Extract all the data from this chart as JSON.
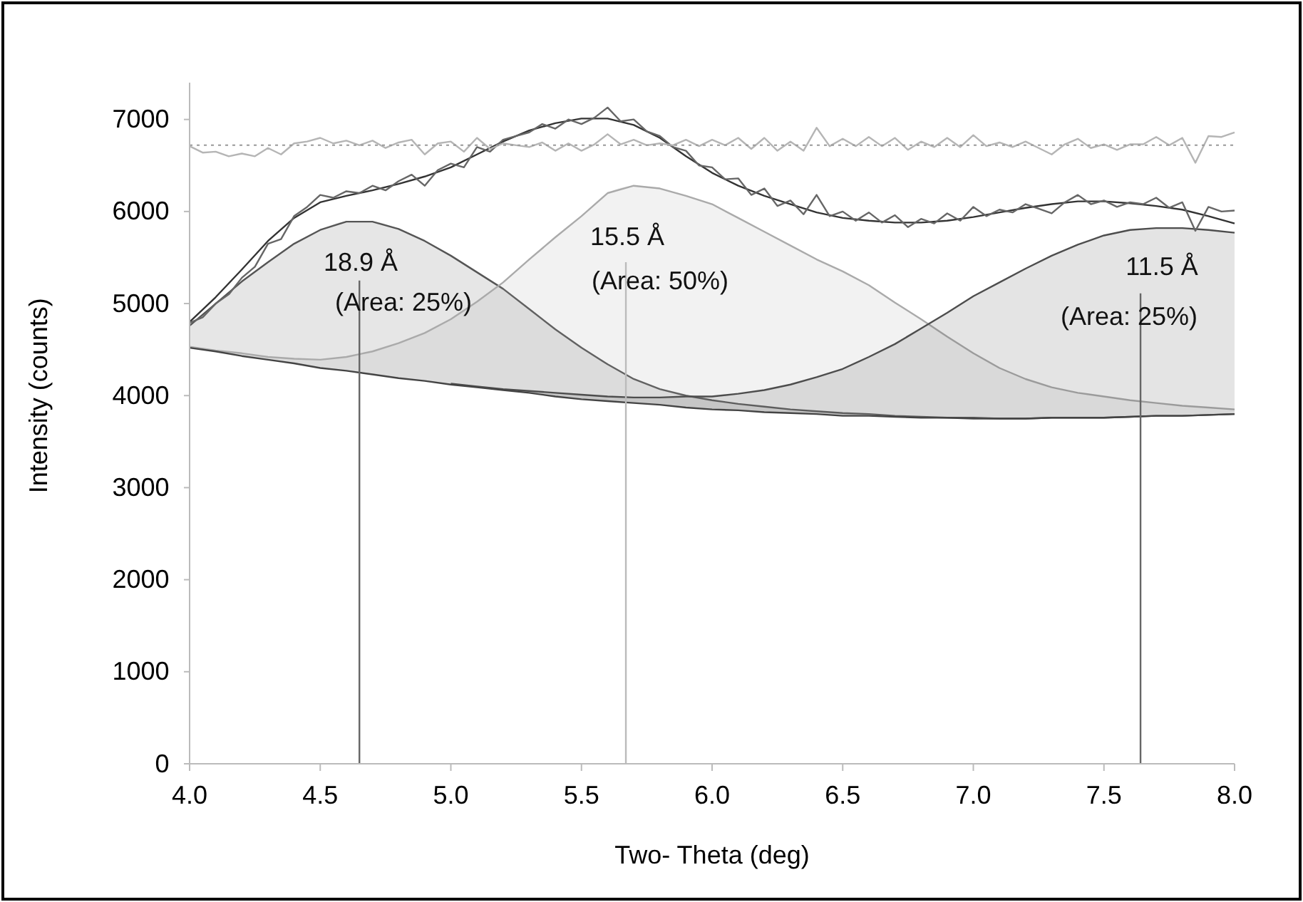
{
  "chart_data": {
    "type": "line",
    "xlabel": "Two- Theta (deg)",
    "ylabel": "Intensity (counts)",
    "xlim": [
      4.0,
      8.0
    ],
    "xticks": [
      {
        "value": 4,
        "label": "4.0"
      },
      {
        "value": 4.5,
        "label": "4.5"
      },
      {
        "value": 5,
        "label": "5.0"
      },
      {
        "value": 5.5,
        "label": "5.5"
      },
      {
        "value": 6,
        "label": "6.0"
      },
      {
        "value": 6.5,
        "label": "6.5"
      },
      {
        "value": 7,
        "label": "7.0"
      },
      {
        "value": 7.5,
        "label": "7.5"
      },
      {
        "value": 8,
        "label": "8.0"
      }
    ],
    "ylim": [
      0,
      7400
    ],
    "yticks": [
      0,
      1000,
      2000,
      3000,
      4000,
      5000,
      6000,
      7000
    ],
    "grid": false,
    "marker": "none",
    "x": [
      4.0,
      4.1,
      4.2,
      4.3,
      4.4,
      4.5,
      4.6,
      4.7,
      4.8,
      4.9,
      5.0,
      5.1,
      5.2,
      5.3,
      5.4,
      5.5,
      5.6,
      5.7,
      5.8,
      5.9,
      6.0,
      6.1,
      6.2,
      6.3,
      6.4,
      6.5,
      6.6,
      6.7,
      6.8,
      6.9,
      7.0,
      7.1,
      7.2,
      7.3,
      7.4,
      7.5,
      7.6,
      7.7,
      7.8,
      7.9,
      8.0
    ],
    "series": [
      {
        "color": "#555555",
        "values": [
          4760,
          5000,
          5240,
          5450,
          5650,
          5800,
          5890,
          5890,
          5810,
          5680,
          5520,
          5340,
          5160,
          4940,
          4720,
          4520,
          4340,
          4180,
          4070,
          4000,
          3950,
          3910,
          3880,
          3850,
          3830,
          3810,
          3800,
          3780,
          3770,
          3760,
          3760,
          3750,
          3750,
          3760,
          3760,
          3760,
          3770,
          3780,
          3780,
          3790,
          3800
        ],
        "upper": [
          4760,
          5000,
          5240,
          5450,
          5650,
          5800,
          5890,
          5890,
          5810,
          5680,
          5520,
          5340,
          5160,
          4940,
          4720,
          4520,
          4340,
          4180,
          4070,
          4000,
          3950,
          3910,
          3880,
          3850,
          3830,
          3810,
          3800,
          3780,
          3770,
          3760,
          3760,
          3750,
          3750,
          3760,
          3760,
          3760,
          3770,
          3780,
          3780,
          3790,
          3800
        ],
        "lower": [
          4520,
          4480,
          4430,
          4390,
          4350,
          4300,
          4270,
          4230,
          4190,
          4160,
          4120,
          4090,
          4060,
          4030,
          3990,
          3960,
          3940,
          3920,
          3900,
          3870,
          3850,
          3840,
          3820,
          3810,
          3800,
          3780,
          3780,
          3770,
          3760,
          3760,
          3750,
          3750,
          3750,
          3760,
          3760,
          3760,
          3770,
          3780,
          3780,
          3790,
          3800
        ]
      },
      {
        "color": "#aaaaaa",
        "values": [
          4530,
          4490,
          4460,
          4420,
          4400,
          4390,
          4420,
          4480,
          4570,
          4680,
          4830,
          5020,
          5230,
          5480,
          5720,
          5950,
          6200,
          6280,
          6250,
          6170,
          6080,
          5930,
          5780,
          5630,
          5480,
          5350,
          5200,
          5010,
          4830,
          4640,
          4460,
          4300,
          4180,
          4090,
          4030,
          3990,
          3950,
          3920,
          3890,
          3870,
          3850
        ],
        "upper": [
          4530,
          4490,
          4460,
          4420,
          4400,
          4390,
          4420,
          4480,
          4570,
          4680,
          4830,
          5020,
          5230,
          5480,
          5720,
          5950,
          6200,
          6280,
          6250,
          6170,
          6080,
          5930,
          5780,
          5630,
          5480,
          5350,
          5200,
          5010,
          4830,
          4640,
          4460,
          4300,
          4180,
          4090,
          4030,
          3990,
          3950,
          3920,
          3890,
          3870,
          3850
        ],
        "lower": [
          4520,
          4480,
          4430,
          4390,
          4350,
          4300,
          4270,
          4230,
          4190,
          4160,
          4120,
          4090,
          4060,
          4030,
          3990,
          3960,
          3940,
          3920,
          3900,
          3870,
          3850,
          3840,
          3820,
          3810,
          3800,
          3780,
          3780,
          3770,
          3760,
          3760,
          3750,
          3750,
          3750,
          3760,
          3760,
          3760,
          3770,
          3780,
          3780,
          3790,
          3800
        ]
      },
      {
        "color": "#4d4d4d",
        "x": [
          5.0,
          5.1,
          5.2,
          5.3,
          5.4,
          5.5,
          5.6,
          5.7,
          5.8,
          5.9,
          6.0,
          6.1,
          6.2,
          6.3,
          6.4,
          6.5,
          6.6,
          6.7,
          6.8,
          6.9,
          7.0,
          7.1,
          7.2,
          7.3,
          7.4,
          7.5,
          7.6,
          7.7,
          7.8,
          7.9,
          8.0
        ],
        "values": [
          4130,
          4100,
          4070,
          4050,
          4030,
          4010,
          3990,
          3980,
          3980,
          3990,
          3990,
          4020,
          4060,
          4120,
          4200,
          4290,
          4420,
          4560,
          4730,
          4900,
          5080,
          5230,
          5380,
          5520,
          5640,
          5740,
          5800,
          5820,
          5820,
          5800,
          5770
        ],
        "upper": [
          4130,
          4100,
          4070,
          4050,
          4030,
          4010,
          3990,
          3980,
          3980,
          3990,
          3990,
          4020,
          4060,
          4120,
          4200,
          4290,
          4420,
          4560,
          4730,
          4900,
          5080,
          5230,
          5380,
          5520,
          5640,
          5740,
          5800,
          5820,
          5820,
          5800,
          5770
        ],
        "lower": [
          4120,
          4090,
          4060,
          4030,
          3990,
          3960,
          3940,
          3920,
          3900,
          3870,
          3850,
          3840,
          3820,
          3810,
          3800,
          3780,
          3780,
          3770,
          3760,
          3760,
          3750,
          3750,
          3750,
          3760,
          3760,
          3760,
          3770,
          3780,
          3780,
          3790,
          3800
        ]
      },
      {
        "color": "#444444",
        "values": [
          4520,
          4480,
          4430,
          4390,
          4350,
          4300,
          4270,
          4230,
          4190,
          4160,
          4120,
          4090,
          4060,
          4030,
          3990,
          3960,
          3940,
          3920,
          3900,
          3870,
          3850,
          3840,
          3820,
          3810,
          3800,
          3780,
          3780,
          3770,
          3760,
          3760,
          3750,
          3750,
          3750,
          3760,
          3760,
          3760,
          3770,
          3780,
          3780,
          3790,
          3800
        ]
      },
      {
        "color": "#333333",
        "values": [
          4800,
          5070,
          5370,
          5680,
          5930,
          6100,
          6170,
          6230,
          6300,
          6380,
          6480,
          6620,
          6760,
          6880,
          6960,
          7010,
          7010,
          6940,
          6800,
          6600,
          6420,
          6280,
          6170,
          6080,
          5990,
          5930,
          5900,
          5880,
          5880,
          5900,
          5940,
          5990,
          6040,
          6080,
          6110,
          6110,
          6090,
          6060,
          6020,
          5950,
          5870
        ]
      },
      {
        "color": "#666666",
        "x": [
          4.0,
          4.05,
          4.1,
          4.15,
          4.2,
          4.25,
          4.3,
          4.35,
          4.4,
          4.45,
          4.5,
          4.55,
          4.6,
          4.65,
          4.7,
          4.75,
          4.8,
          4.85,
          4.9,
          4.95,
          5.0,
          5.05,
          5.1,
          5.15,
          5.2,
          5.25,
          5.3,
          5.35,
          5.4,
          5.45,
          5.5,
          5.55,
          5.6,
          5.65,
          5.7,
          5.75,
          5.8,
          5.85,
          5.9,
          5.95,
          6.0,
          6.05,
          6.1,
          6.15,
          6.2,
          6.25,
          6.3,
          6.35,
          6.4,
          6.45,
          6.5,
          6.55,
          6.6,
          6.65,
          6.7,
          6.75,
          6.8,
          6.85,
          6.9,
          6.95,
          7.0,
          7.05,
          7.1,
          7.15,
          7.2,
          7.25,
          7.3,
          7.35,
          7.4,
          7.45,
          7.5,
          7.55,
          7.6,
          7.65,
          7.7,
          7.75,
          7.8,
          7.85,
          7.9,
          7.95,
          8.0
        ],
        "values": [
          4790,
          4850,
          5000,
          5100,
          5280,
          5400,
          5650,
          5700,
          5950,
          6050,
          6180,
          6150,
          6220,
          6200,
          6280,
          6230,
          6330,
          6400,
          6280,
          6450,
          6520,
          6480,
          6700,
          6650,
          6780,
          6820,
          6860,
          6950,
          6900,
          7000,
          6950,
          7020,
          7130,
          6980,
          7000,
          6870,
          6820,
          6700,
          6660,
          6500,
          6480,
          6350,
          6360,
          6180,
          6250,
          6060,
          6120,
          5970,
          6180,
          5950,
          6000,
          5900,
          5990,
          5880,
          5960,
          5830,
          5920,
          5870,
          5980,
          5900,
          6050,
          5950,
          6020,
          5990,
          6080,
          6030,
          5980,
          6100,
          6180,
          6080,
          6120,
          6050,
          6100,
          6080,
          6150,
          6040,
          6100,
          5790,
          6050,
          6000,
          6010
        ]
      },
      {
        "color": "#b5b5b5",
        "x": [
          4.0,
          4.05,
          4.1,
          4.15,
          4.2,
          4.25,
          4.3,
          4.35,
          4.4,
          4.45,
          4.5,
          4.55,
          4.6,
          4.65,
          4.7,
          4.75,
          4.8,
          4.85,
          4.9,
          4.95,
          5.0,
          5.05,
          5.1,
          5.15,
          5.2,
          5.25,
          5.3,
          5.35,
          5.4,
          5.45,
          5.5,
          5.55,
          5.6,
          5.65,
          5.7,
          5.75,
          5.8,
          5.85,
          5.9,
          5.95,
          6.0,
          6.05,
          6.1,
          6.15,
          6.2,
          6.25,
          6.3,
          6.35,
          6.4,
          6.45,
          6.5,
          6.55,
          6.6,
          6.65,
          6.7,
          6.75,
          6.8,
          6.85,
          6.9,
          6.95,
          7.0,
          7.05,
          7.1,
          7.15,
          7.2,
          7.25,
          7.3,
          7.35,
          7.4,
          7.45,
          7.5,
          7.55,
          7.6,
          7.65,
          7.7,
          7.75,
          7.8,
          7.85,
          7.9,
          7.95,
          8.0
        ],
        "values": [
          6710,
          6640,
          6650,
          6600,
          6630,
          6600,
          6690,
          6620,
          6740,
          6760,
          6800,
          6740,
          6770,
          6720,
          6770,
          6690,
          6750,
          6780,
          6620,
          6740,
          6760,
          6650,
          6800,
          6680,
          6740,
          6720,
          6700,
          6750,
          6660,
          6740,
          6660,
          6730,
          6840,
          6730,
          6780,
          6720,
          6740,
          6720,
          6780,
          6710,
          6780,
          6720,
          6800,
          6680,
          6800,
          6660,
          6760,
          6660,
          6910,
          6710,
          6790,
          6710,
          6810,
          6710,
          6800,
          6670,
          6760,
          6700,
          6800,
          6700,
          6830,
          6710,
          6750,
          6700,
          6760,
          6690,
          6620,
          6730,
          6790,
          6690,
          6730,
          6670,
          6730,
          6730,
          6810,
          6720,
          6800,
          6530,
          6820,
          6810,
          6860
        ]
      },
      {
        "color": "#666666",
        "x": [
          4.65,
          4.65
        ],
        "values": [
          0,
          5250
        ]
      },
      {
        "color": "#bbbbbb",
        "x": [
          5.67,
          5.67
        ],
        "values": [
          0,
          5450
        ]
      },
      {
        "color": "#666666",
        "x": [
          7.64,
          7.64
        ],
        "values": [
          0,
          5110
        ]
      }
    ],
    "ref_lines": [
      {
        "axis": "y",
        "value": 6720,
        "color": "#999999",
        "line_style": "dotted"
      }
    ],
    "annotations": [
      "18.9 Å",
      "(Area: 25%)",
      "15.5 Å",
      "(Area: 50%)",
      "11.5 Å",
      "(Area: 25%)"
    ]
  }
}
